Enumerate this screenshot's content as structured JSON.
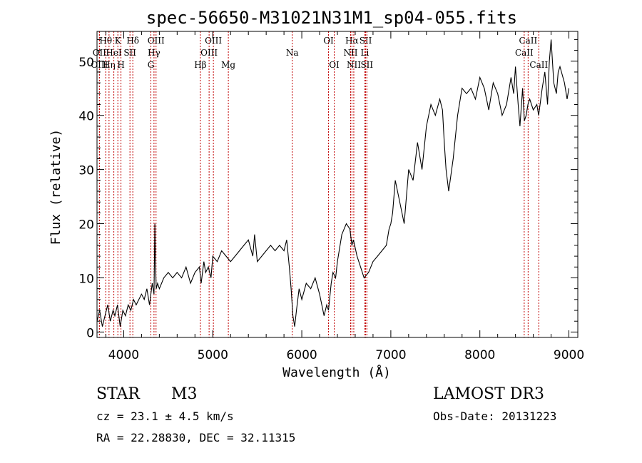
{
  "chart_data": {
    "type": "line",
    "title": "spec-56650-M31021N31M1_sp04-055.fits",
    "xlabel": "Wavelength (Å)",
    "ylabel": "Flux (relative)",
    "xlim": [
      3700,
      9100
    ],
    "ylim": [
      -1,
      55.5
    ],
    "xticks": [
      4000,
      5000,
      6000,
      7000,
      8000,
      9000
    ],
    "yticks": [
      0,
      10,
      20,
      30,
      40,
      50
    ],
    "series": [
      {
        "name": "spectrum",
        "x": [
          3700,
          3730,
          3760,
          3790,
          3820,
          3850,
          3880,
          3900,
          3930,
          3960,
          3990,
          4020,
          4050,
          4080,
          4110,
          4140,
          4170,
          4200,
          4230,
          4260,
          4290,
          4320,
          4340,
          4350,
          4355,
          4365,
          4380,
          4400,
          4450,
          4500,
          4550,
          4600,
          4650,
          4700,
          4750,
          4800,
          4850,
          4870,
          4900,
          4920,
          4950,
          4980,
          5000,
          5050,
          5100,
          5150,
          5200,
          5250,
          5300,
          5350,
          5400,
          5450,
          5470,
          5500,
          5550,
          5600,
          5650,
          5700,
          5750,
          5800,
          5830,
          5860,
          5880,
          5900,
          5920,
          5940,
          5970,
          6000,
          6050,
          6100,
          6150,
          6200,
          6250,
          6280,
          6300,
          6330,
          6350,
          6380,
          6400,
          6450,
          6500,
          6540,
          6563,
          6580,
          6620,
          6660,
          6700,
          6750,
          6800,
          6850,
          6900,
          6950,
          6980,
          7000,
          7020,
          7050,
          7100,
          7150,
          7200,
          7250,
          7300,
          7350,
          7400,
          7450,
          7500,
          7550,
          7580,
          7600,
          7620,
          7650,
          7700,
          7750,
          7800,
          7850,
          7900,
          7950,
          8000,
          8050,
          8100,
          8150,
          8200,
          8250,
          8300,
          8350,
          8380,
          8400,
          8430,
          8450,
          8480,
          8500,
          8520,
          8540,
          8560,
          8600,
          8640,
          8660,
          8700,
          8730,
          8760,
          8780,
          8800,
          8830,
          8860,
          8880,
          8900,
          8950,
          8980,
          9000
        ],
        "y": [
          2,
          4,
          1,
          3,
          5,
          2,
          4,
          3,
          5,
          1,
          4,
          3,
          5,
          4,
          6,
          5,
          6,
          7,
          6,
          8,
          5,
          9,
          7,
          20,
          14,
          8,
          9,
          8,
          10,
          11,
          10,
          11,
          10,
          12,
          9,
          11,
          12,
          9,
          13,
          11,
          12,
          10,
          14,
          13,
          15,
          14,
          13,
          14,
          15,
          16,
          17,
          14,
          18,
          13,
          14,
          15,
          16,
          15,
          16,
          15,
          17,
          12,
          8,
          3,
          1,
          4,
          8,
          6,
          9,
          8,
          10,
          7,
          3,
          5,
          4,
          9,
          11,
          10,
          13,
          18,
          20,
          19,
          16,
          17,
          14,
          12,
          10,
          11,
          13,
          14,
          15,
          16,
          19,
          20,
          22,
          28,
          24,
          20,
          30,
          28,
          35,
          30,
          38,
          42,
          40,
          43,
          41,
          35,
          30,
          26,
          32,
          40,
          45,
          44,
          45,
          43,
          47,
          45,
          41,
          46,
          44,
          40,
          42,
          47,
          44,
          49,
          42,
          38,
          45,
          39,
          40,
          42,
          43,
          41,
          42,
          40,
          45,
          48,
          42,
          50,
          54,
          46,
          44,
          48,
          49,
          46,
          43,
          45
        ]
      }
    ],
    "emission_lines": [
      {
        "label": "Hθ",
        "x": 3798,
        "row": 1
      },
      {
        "label": "OII",
        "x": 3727,
        "row": 2
      },
      {
        "label": "OIII",
        "x": 3727,
        "row": 3
      },
      {
        "label": "Hη",
        "x": 3835,
        "row": 3
      },
      {
        "label": "K",
        "x": 3934,
        "row": 1
      },
      {
        "label": "HeI",
        "x": 3889,
        "row": 2
      },
      {
        "label": "H",
        "x": 3969,
        "row": 3
      },
      {
        "label": "SII",
        "x": 4070,
        "row": 2
      },
      {
        "label": "Hδ",
        "x": 4102,
        "row": 1
      },
      {
        "label": "OIII",
        "x": 4363,
        "row": 1
      },
      {
        "label": "Hγ",
        "x": 4340,
        "row": 2
      },
      {
        "label": "G",
        "x": 4305,
        "row": 3
      },
      {
        "label": "Hβ",
        "x": 4861,
        "row": 3
      },
      {
        "label": "OIII",
        "x": 5007,
        "row": 1
      },
      {
        "label": "OIII",
        "x": 4959,
        "row": 2
      },
      {
        "label": "Mg",
        "x": 5175,
        "row": 3
      },
      {
        "label": "Na",
        "x": 5893,
        "row": 2
      },
      {
        "label": "OI",
        "x": 6300,
        "row": 1
      },
      {
        "label": "OI",
        "x": 6364,
        "row": 3
      },
      {
        "label": "Hα",
        "x": 6563,
        "row": 1
      },
      {
        "label": "NII",
        "x": 6548,
        "row": 2
      },
      {
        "label": "NII",
        "x": 6584,
        "row": 3
      },
      {
        "label": "SII",
        "x": 6717,
        "row": 1
      },
      {
        "label": "Li",
        "x": 6708,
        "row": 2
      },
      {
        "label": "SII",
        "x": 6731,
        "row": 3
      },
      {
        "label": "CaII",
        "x": 8542,
        "row": 1
      },
      {
        "label": "CaII",
        "x": 8498,
        "row": 2
      },
      {
        "label": "CaII",
        "x": 8662,
        "row": 3
      }
    ]
  },
  "info": {
    "object_type": "STAR",
    "subclass": "M3",
    "survey": "LAMOST DR3",
    "cz": "cz = 23.1 ± 4.5 km/s",
    "obs_date": "Obs-Date: 20131223",
    "coords": "RA =  22.28830, DEC =  32.11315"
  }
}
